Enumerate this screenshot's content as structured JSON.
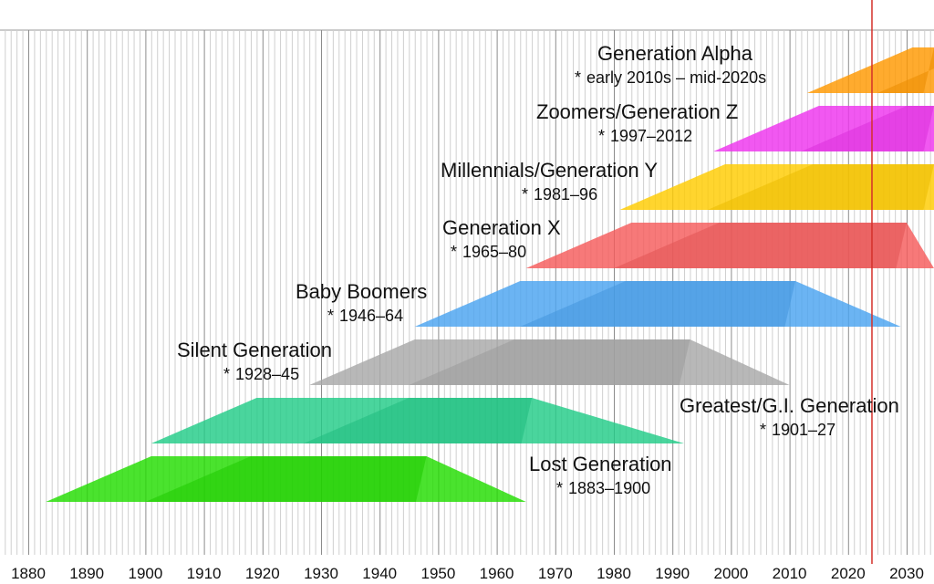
{
  "chart_data": {
    "type": "timeline",
    "title": "",
    "xlabel": "",
    "ylabel": "",
    "xlim": [
      1876,
      2036
    ],
    "x_ticks": [
      1880,
      1890,
      1900,
      1910,
      1920,
      1930,
      1940,
      1950,
      1960,
      1970,
      1980,
      1990,
      2000,
      2010,
      2020,
      2030
    ],
    "tick_labels": [
      "1880",
      "1890",
      "1900",
      "1910",
      "1920",
      "1930",
      "1940",
      "1950",
      "1960",
      "1970",
      "1980",
      "1990",
      "2000",
      "2010",
      "2020",
      "2030"
    ],
    "current_year": 2024,
    "birth_marker": "*",
    "generations": [
      {
        "name": "Generation Alpha",
        "range_label": "early 2010s – mid-2020s",
        "birth_start": 2013,
        "birth_end": 2025,
        "color": "#ff9900"
      },
      {
        "name": "Zoomers/Generation Z",
        "range_label": "1997–2012",
        "birth_start": 1997,
        "birth_end": 2012,
        "color": "#ee33ee"
      },
      {
        "name": "Millennials/Generation Y",
        "range_label": "1981–96",
        "birth_start": 1981,
        "birth_end": 1996,
        "color": "#ffcc00"
      },
      {
        "name": "Generation X",
        "range_label": "1965–80",
        "birth_start": 1965,
        "birth_end": 1980,
        "color": "#f55b5b"
      },
      {
        "name": "Baby Boomers",
        "range_label": "1946–64",
        "birth_start": 1946,
        "birth_end": 1964,
        "color": "#4aa3f0"
      },
      {
        "name": "Silent Generation",
        "range_label": "1928–45",
        "birth_start": 1928,
        "birth_end": 1945,
        "color": "#a8a8a8"
      },
      {
        "name": "Greatest/G.I. Generation",
        "range_label": "1901–27",
        "birth_start": 1901,
        "birth_end": 1927,
        "color": "#22cc88"
      },
      {
        "name": "Lost Generation",
        "range_label": "1883–1900",
        "birth_start": 1883,
        "birth_end": 1900,
        "color": "#22dd00"
      }
    ]
  }
}
